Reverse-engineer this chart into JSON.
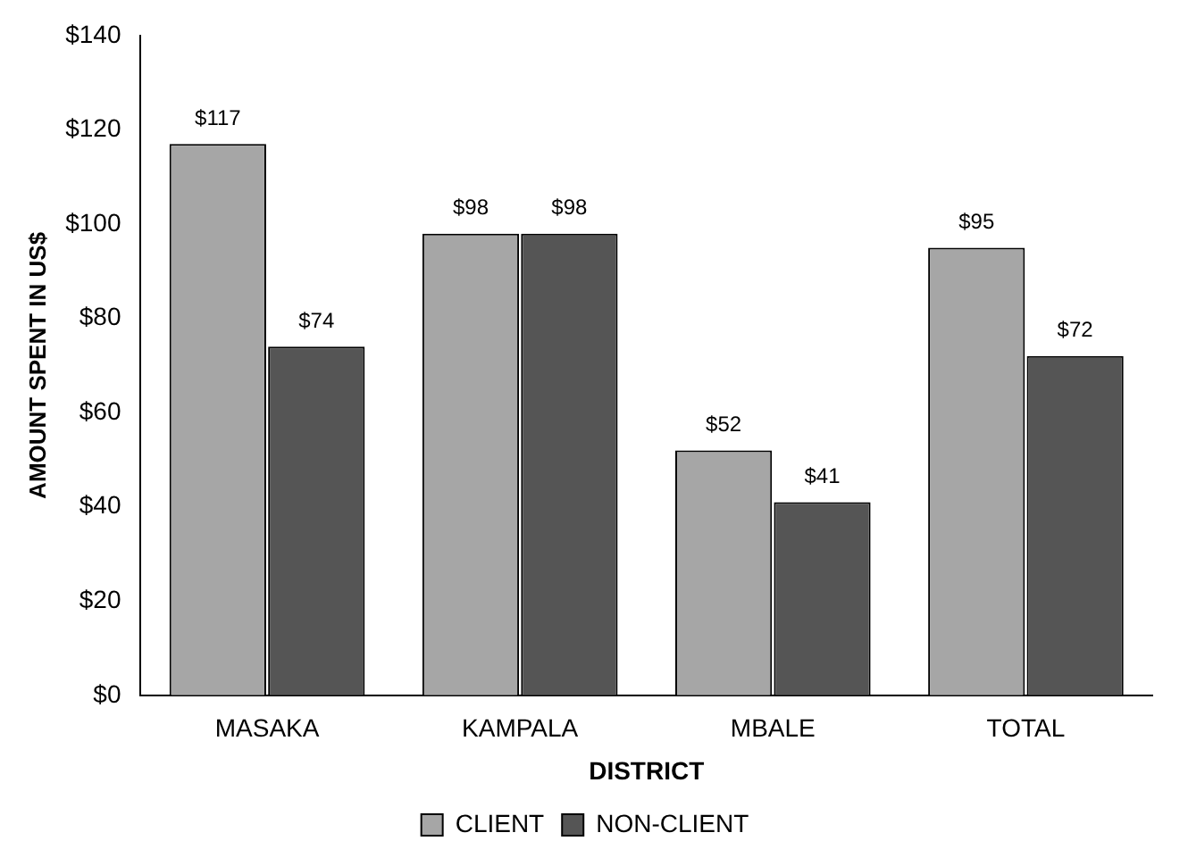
{
  "chart_data": {
    "type": "bar",
    "xlabel": "DISTRICT",
    "ylabel": "AMOUNT SPENT IN US$",
    "categories": [
      "MASAKA",
      "KAMPALA",
      "MBALE",
      "TOTAL"
    ],
    "series": [
      {
        "name": "CLIENT",
        "color": "#a6a6a6",
        "values": [
          117,
          98,
          52,
          95
        ],
        "value_labels": [
          "$117",
          "$98",
          "$52",
          "$95"
        ]
      },
      {
        "name": "NON-CLIENT",
        "color": "#555555",
        "values": [
          74,
          98,
          41,
          72
        ],
        "value_labels": [
          "$74",
          "$98",
          "$41",
          "$72"
        ]
      }
    ],
    "ylim": [
      0,
      140
    ],
    "yticks": [
      {
        "value": 0,
        "label": "$0"
      },
      {
        "value": 20,
        "label": "$20"
      },
      {
        "value": 40,
        "label": "$40"
      },
      {
        "value": 60,
        "label": "$60"
      },
      {
        "value": 80,
        "label": "$80"
      },
      {
        "value": 100,
        "label": "$100"
      },
      {
        "value": 120,
        "label": "$120"
      },
      {
        "value": 140,
        "label": "$140"
      }
    ],
    "grid": false,
    "legend": "bottom"
  }
}
